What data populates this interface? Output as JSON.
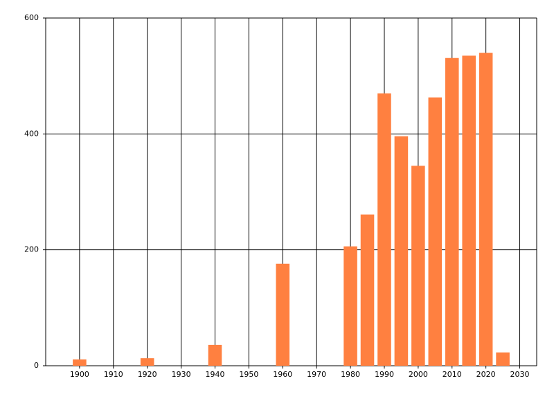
{
  "chart_data": {
    "type": "bar",
    "x": [
      1900,
      1920,
      1940,
      1960,
      1980,
      1985,
      1990,
      1995,
      2000,
      2005,
      2010,
      2015,
      2020,
      2025
    ],
    "values": [
      11,
      13,
      36,
      176,
      206,
      261,
      470,
      396,
      345,
      463,
      531,
      535,
      540,
      23
    ],
    "color": "#ff8040",
    "xlim": [
      1890,
      2035
    ],
    "xticks": [
      1900,
      1910,
      1920,
      1930,
      1940,
      1950,
      1960,
      1970,
      1980,
      1990,
      2000,
      2010,
      2020,
      2030
    ],
    "ylim": [
      0,
      600
    ],
    "yticks": [
      0,
      200,
      400,
      600
    ],
    "grid": true
  }
}
